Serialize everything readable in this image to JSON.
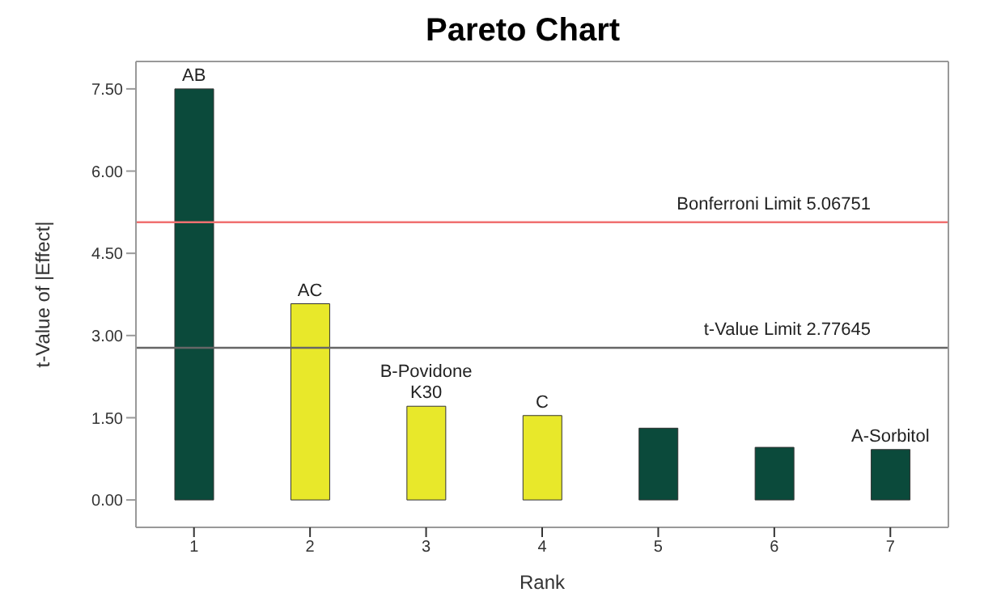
{
  "chart_data": {
    "type": "bar",
    "title": "Pareto Chart",
    "xlabel": "Rank",
    "ylabel": "t-Value of |Effect|",
    "categories": [
      "1",
      "2",
      "3",
      "4",
      "5",
      "6",
      "7"
    ],
    "values": [
      7.5,
      3.58,
      1.71,
      1.54,
      1.31,
      0.96,
      0.92
    ],
    "colors": [
      "#0b4a3b",
      "#e8e82a",
      "#e8e82a",
      "#e8e82a",
      "#0b4a3b",
      "#0b4a3b",
      "#0b4a3b"
    ],
    "ylim": [
      -0.5,
      8
    ],
    "yticks": [
      {
        "value": 0,
        "label": "0.00"
      },
      {
        "value": 1.5,
        "label": "1.50"
      },
      {
        "value": 3,
        "label": "3.00"
      },
      {
        "value": 4.5,
        "label": "4.50"
      },
      {
        "value": 6,
        "label": "6.00"
      },
      {
        "value": 7.5,
        "label": "7.50"
      }
    ],
    "ref_lines": [
      {
        "axis": "y",
        "value": 5.06751,
        "label": "Bonferroni Limit 5.06751",
        "color": "#f07070"
      },
      {
        "axis": "y",
        "value": 2.77645,
        "label": "t-Value Limit 2.77645",
        "color": "#666666"
      }
    ],
    "annotations": [
      {
        "text": "AB",
        "x": "1",
        "y": 7.5
      },
      {
        "text": "AC",
        "x": "2",
        "y": 3.58
      },
      {
        "text": "B-Povidone K30",
        "x": "3",
        "y": 1.71
      },
      {
        "text": "C",
        "x": "4",
        "y": 1.54
      },
      {
        "text": "A-Sorbitol",
        "x": "7",
        "y": 0.92
      }
    ],
    "grid": false,
    "legend": false
  }
}
